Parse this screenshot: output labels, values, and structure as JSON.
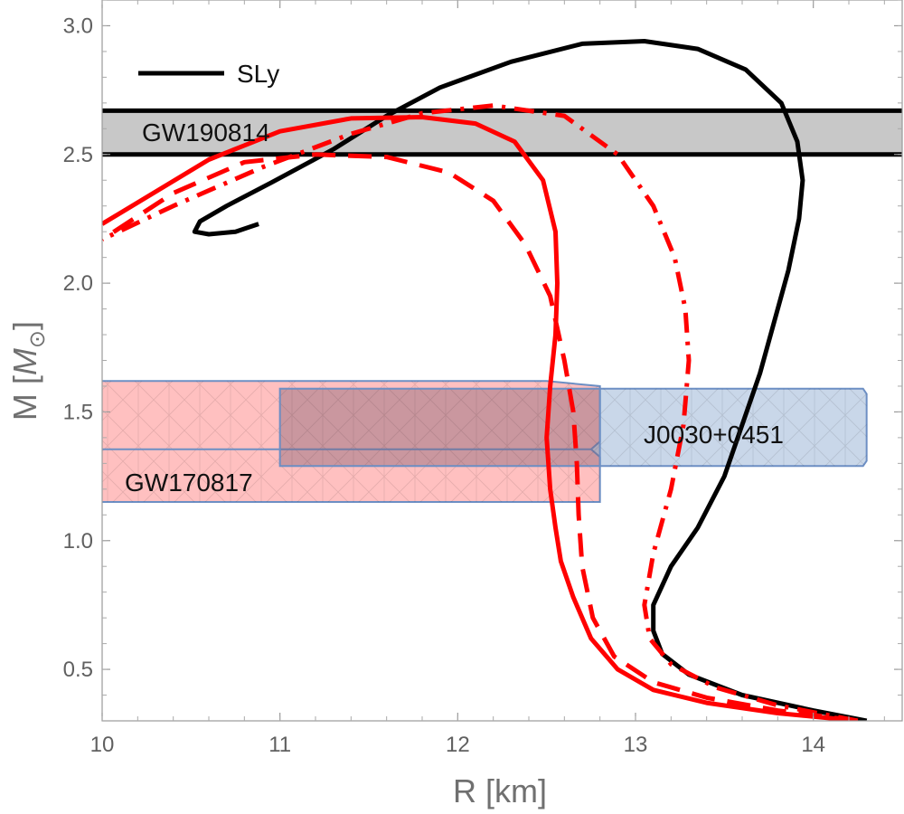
{
  "chart_data": {
    "type": "line",
    "title": "",
    "xlabel": "R [km]",
    "ylabel": "M [M⊙]",
    "xlim": [
      10,
      14.5
    ],
    "ylim": [
      0.3,
      3.1
    ],
    "xticks": [
      "10",
      "11",
      "12",
      "13",
      "14"
    ],
    "yticks": [
      "0.5",
      "1.0",
      "1.5",
      "2.0",
      "2.5",
      "3.0"
    ],
    "grid": false,
    "legend": {
      "position": "top-left",
      "entries": [
        {
          "label": "SLy",
          "color": "#000000",
          "style": "solid"
        }
      ]
    },
    "bands": [
      {
        "label": "GW190814",
        "y": [
          2.5,
          2.67
        ],
        "color": "#c8c8c8",
        "edge_color": "#000000"
      },
      {
        "label": "J0030+0451",
        "x": [
          11.0,
          14.3
        ],
        "y": [
          1.29,
          1.59
        ],
        "color": "#b7c9e2",
        "edge_color": "#6d8fc4"
      },
      {
        "label": "GW170817",
        "x": [
          10.0,
          12.8
        ],
        "y": [
          1.15,
          1.62
        ],
        "color": "#ffb0b0",
        "edge_color": "#6d8fc4"
      }
    ],
    "series": [
      {
        "color": "#000000",
        "style": "solid",
        "points": [
          [
            14.3,
            0.3
          ],
          [
            14.0,
            0.34
          ],
          [
            13.6,
            0.4
          ],
          [
            13.3,
            0.48
          ],
          [
            13.15,
            0.56
          ],
          [
            13.1,
            0.65
          ],
          [
            13.1,
            0.75
          ],
          [
            13.2,
            0.9
          ],
          [
            13.35,
            1.05
          ],
          [
            13.5,
            1.25
          ],
          [
            13.6,
            1.45
          ],
          [
            13.7,
            1.65
          ],
          [
            13.78,
            1.85
          ],
          [
            13.86,
            2.05
          ],
          [
            13.92,
            2.25
          ],
          [
            13.94,
            2.4
          ],
          [
            13.91,
            2.55
          ],
          [
            13.82,
            2.7
          ],
          [
            13.62,
            2.83
          ],
          [
            13.35,
            2.91
          ],
          [
            13.05,
            2.94
          ],
          [
            12.7,
            2.93
          ],
          [
            12.3,
            2.86
          ],
          [
            11.9,
            2.76
          ],
          [
            11.6,
            2.65
          ],
          [
            11.3,
            2.52
          ],
          [
            10.95,
            2.39
          ],
          [
            10.7,
            2.3
          ],
          [
            10.55,
            2.24
          ],
          [
            10.52,
            2.2
          ],
          [
            10.6,
            2.19
          ],
          [
            10.75,
            2.2
          ],
          [
            10.88,
            2.23
          ]
        ]
      },
      {
        "color": "#ff0000",
        "style": "solid",
        "points": [
          [
            14.25,
            0.3
          ],
          [
            13.8,
            0.33
          ],
          [
            13.4,
            0.37
          ],
          [
            13.1,
            0.42
          ],
          [
            12.9,
            0.5
          ],
          [
            12.75,
            0.62
          ],
          [
            12.65,
            0.78
          ],
          [
            12.58,
            0.92
          ],
          [
            12.55,
            1.05
          ],
          [
            12.52,
            1.2
          ],
          [
            12.5,
            1.4
          ],
          [
            12.52,
            1.6
          ],
          [
            12.55,
            1.8
          ],
          [
            12.56,
            2.0
          ],
          [
            12.55,
            2.2
          ],
          [
            12.48,
            2.4
          ],
          [
            12.32,
            2.55
          ],
          [
            12.1,
            2.62
          ],
          [
            11.8,
            2.645
          ],
          [
            11.4,
            2.64
          ],
          [
            11.0,
            2.59
          ],
          [
            10.6,
            2.48
          ],
          [
            10.0,
            2.23
          ]
        ]
      },
      {
        "color": "#ff0000",
        "style": "dashed",
        "points": [
          [
            14.25,
            0.3
          ],
          [
            13.8,
            0.34
          ],
          [
            13.4,
            0.39
          ],
          [
            13.1,
            0.45
          ],
          [
            12.88,
            0.55
          ],
          [
            12.76,
            0.7
          ],
          [
            12.7,
            0.9
          ],
          [
            12.68,
            1.1
          ],
          [
            12.67,
            1.3
          ],
          [
            12.65,
            1.5
          ],
          [
            12.6,
            1.7
          ],
          [
            12.52,
            1.95
          ],
          [
            12.38,
            2.15
          ],
          [
            12.2,
            2.32
          ],
          [
            11.95,
            2.43
          ],
          [
            11.6,
            2.49
          ],
          [
            11.2,
            2.5
          ],
          [
            10.8,
            2.47
          ],
          [
            10.4,
            2.35
          ],
          [
            10.0,
            2.17
          ]
        ]
      },
      {
        "color": "#ff0000",
        "style": "dashdot",
        "points": [
          [
            14.25,
            0.3
          ],
          [
            13.8,
            0.36
          ],
          [
            13.45,
            0.43
          ],
          [
            13.2,
            0.52
          ],
          [
            13.08,
            0.62
          ],
          [
            13.05,
            0.75
          ],
          [
            13.1,
            0.95
          ],
          [
            13.2,
            1.2
          ],
          [
            13.27,
            1.45
          ],
          [
            13.3,
            1.7
          ],
          [
            13.28,
            1.9
          ],
          [
            13.22,
            2.1
          ],
          [
            13.1,
            2.3
          ],
          [
            12.9,
            2.5
          ],
          [
            12.6,
            2.65
          ],
          [
            12.2,
            2.69
          ],
          [
            11.8,
            2.66
          ],
          [
            11.4,
            2.58
          ],
          [
            10.9,
            2.45
          ],
          [
            10.4,
            2.3
          ],
          [
            10.0,
            2.17
          ]
        ]
      }
    ]
  }
}
